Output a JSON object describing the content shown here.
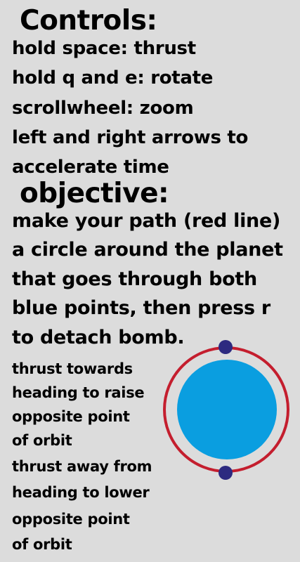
{
  "controls": {
    "heading": "Controls:",
    "lines": [
      "hold space: thrust",
      "hold q and e: rotate",
      "scrollwheel: zoom",
      "left and right arrows to",
      "accelerate time"
    ]
  },
  "objective": {
    "heading": "objective:",
    "lines": [
      "make your path (red line)",
      "a circle around the planet",
      "that goes through both",
      "blue points, then press r",
      "to detach bomb."
    ]
  },
  "tips": {
    "raise": [
      "thrust towards",
      "heading to raise",
      "opposite point",
      "of orbit"
    ],
    "lower": [
      "thrust away from",
      "heading to lower",
      "opposite point",
      "of orbit"
    ]
  },
  "diagram": {
    "planet_color": "#0a9ee0",
    "orbit_color": "#c41e2e",
    "point_color": "#2d2a80"
  }
}
